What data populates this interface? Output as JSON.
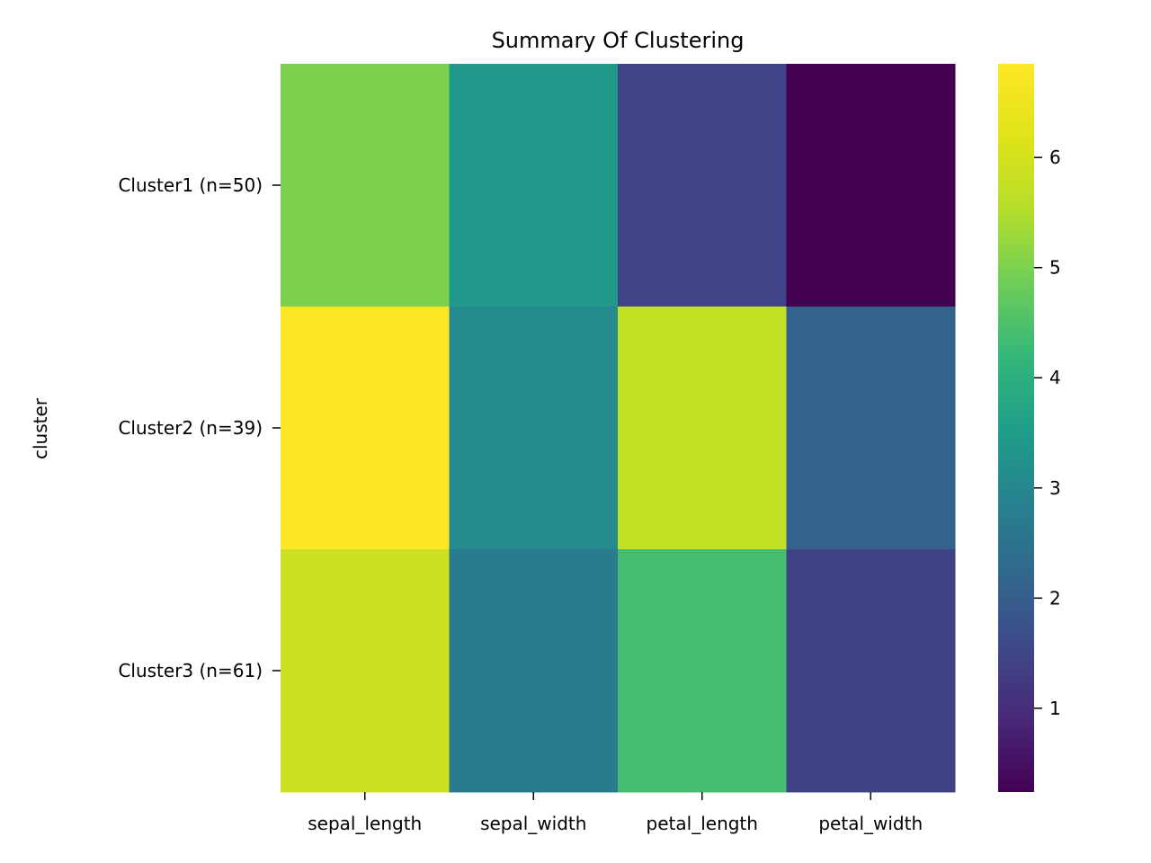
{
  "chart_data": {
    "type": "heatmap",
    "title": "Summary Of Clustering",
    "xlabel": "",
    "ylabel": "cluster",
    "x_categories": [
      "sepal_length",
      "sepal_width",
      "petal_length",
      "petal_width"
    ],
    "y_categories": [
      "Cluster1 (n=50)",
      "Cluster2 (n=39)",
      "Cluster3 (n=61)"
    ],
    "values": [
      [
        5.01,
        3.42,
        1.46,
        0.24
      ],
      [
        6.85,
        3.07,
        5.74,
        2.07
      ],
      [
        5.88,
        2.74,
        4.39,
        1.43
      ]
    ],
    "colormap": "viridis",
    "colorbar": {
      "range": [
        0.24,
        6.85
      ],
      "ticks": [
        1,
        2,
        3,
        4,
        5,
        6
      ]
    },
    "grid": false
  }
}
